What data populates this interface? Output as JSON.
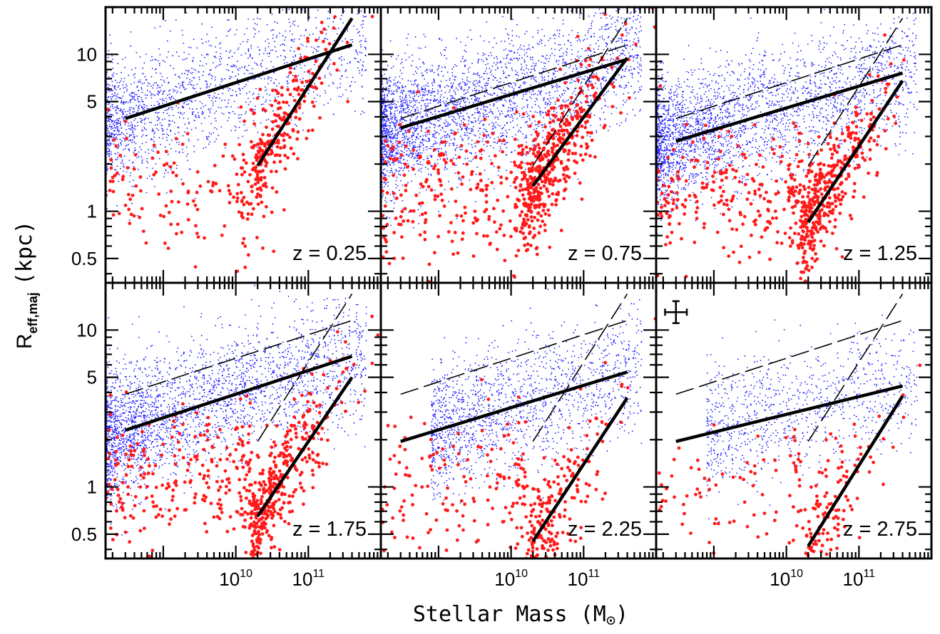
{
  "figure": {
    "xlabel_main": "Stellar Mass (M",
    "xlabel_sun": "⊙",
    "xlabel_close": ")",
    "ylabel_main": "R",
    "ylabel_sub": "eff,maj",
    "ylabel_unit": "(kpc)",
    "colors": {
      "star_forming": "#1a1aff",
      "quiescent": "#ff1a1a",
      "fit": "#000000"
    }
  },
  "chart_data": {
    "type": "scatter",
    "layout": "2x3 panel grid, shared axes",
    "xaxis": {
      "scale": "log",
      "lim": [
        160000000.0,
        1000000000000.0
      ],
      "ticks": [
        10000000000.0,
        100000000000.0
      ],
      "tick_labels": [
        "10",
        "10"
      ],
      "tick_exponents": [
        "10",
        "11"
      ]
    },
    "yaxis": {
      "scale": "log",
      "lim": [
        0.35,
        20
      ],
      "ticks": [
        0.5,
        1,
        5,
        10
      ],
      "tick_labels": [
        "0.5",
        "1",
        "5",
        "10"
      ]
    },
    "series_names": [
      "star-forming (blue dots)",
      "quiescent (red dots)"
    ],
    "reference_fits_z025": {
      "late_type": {
        "x": [
          300000000.0,
          400000000000.0
        ],
        "y": [
          3.9,
          11.5
        ]
      },
      "early_type": {
        "x": [
          20000000000.0,
          400000000000.0
        ],
        "y": [
          1.95,
          17.0
        ]
      }
    },
    "panels": [
      {
        "label": "z = 0.25",
        "density": 0.55,
        "show_reference": false,
        "late_fit": {
          "x": [
            300000000.0,
            400000000000.0
          ],
          "y": [
            3.9,
            11.5
          ]
        },
        "early_fit": {
          "x": [
            20000000000.0,
            400000000000.0
          ],
          "y": [
            1.95,
            17.0
          ]
        }
      },
      {
        "label": "z = 0.75",
        "density": 1.0,
        "show_reference": true,
        "late_fit": {
          "x": [
            300000000.0,
            400000000000.0
          ],
          "y": [
            3.4,
            9.3
          ]
        },
        "early_fit": {
          "x": [
            20000000000.0,
            400000000000.0
          ],
          "y": [
            1.45,
            9.5
          ]
        }
      },
      {
        "label": "z = 1.25",
        "density": 0.9,
        "show_reference": true,
        "late_fit": {
          "x": [
            300000000.0,
            400000000000.0
          ],
          "y": [
            2.8,
            7.6
          ]
        },
        "early_fit": {
          "x": [
            20000000000.0,
            400000000000.0
          ],
          "y": [
            0.85,
            6.8
          ]
        }
      },
      {
        "label": "z = 1.75",
        "density": 0.9,
        "show_reference": true,
        "late_fit": {
          "x": [
            300000000.0,
            400000000000.0
          ],
          "y": [
            2.3,
            6.8
          ]
        },
        "early_fit": {
          "x": [
            20000000000.0,
            400000000000.0
          ],
          "y": [
            0.65,
            5.0
          ]
        }
      },
      {
        "label": "z = 2.25",
        "density": 0.5,
        "show_reference": true,
        "late_fit": {
          "x": [
            300000000.0,
            400000000000.0
          ],
          "y": [
            1.95,
            5.4
          ]
        },
        "early_fit": {
          "x": [
            20000000000.0,
            400000000000.0
          ],
          "y": [
            0.45,
            3.7
          ]
        }
      },
      {
        "label": "z = 2.75",
        "density": 0.3,
        "show_reference": true,
        "late_fit": {
          "x": [
            300000000.0,
            400000000000.0
          ],
          "y": [
            1.95,
            4.4
          ]
        },
        "early_fit": {
          "x": [
            20000000000.0,
            400000000000.0
          ],
          "y": [
            0.42,
            3.8
          ]
        },
        "error_bar": {
          "x": 300000000.0,
          "y": 13,
          "dx_dex": 0.15,
          "dy_dex": 0.07
        }
      }
    ]
  }
}
